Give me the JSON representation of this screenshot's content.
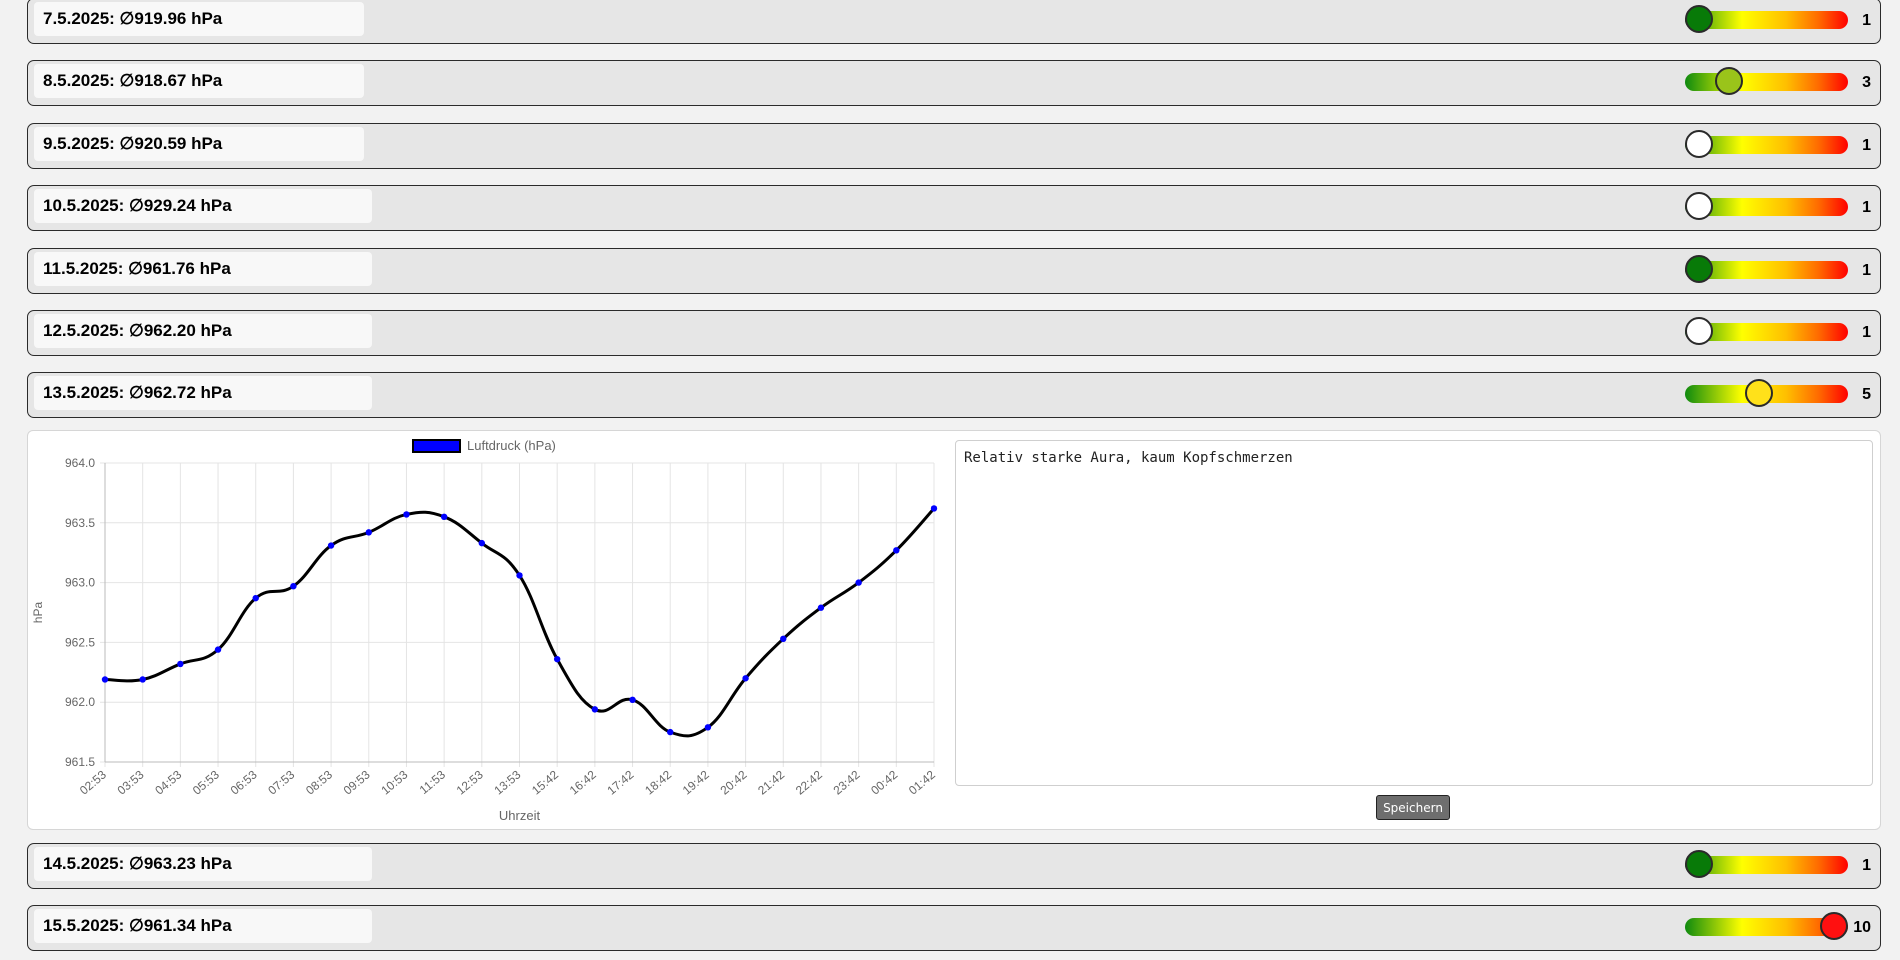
{
  "rows_before": [
    {
      "label": "7.5.2025: ∅919.96 hPa",
      "rating": "1",
      "level": 1,
      "color": "#087a08"
    },
    {
      "label": "8.5.2025: ∅918.67 hPa",
      "rating": "3",
      "level": 3,
      "color": "#9ac41a"
    },
    {
      "label": "9.5.2025: ∅920.59 hPa",
      "rating": "1",
      "level": 1,
      "color": "#ffffff"
    },
    {
      "label": "10.5.2025: ∅929.24 hPa",
      "rating": "1",
      "level": 1,
      "color": "#ffffff"
    },
    {
      "label": "11.5.2025: ∅961.76 hPa",
      "rating": "1",
      "level": 1,
      "color": "#087a08"
    },
    {
      "label": "12.5.2025: ∅962.20 hPa",
      "rating": "1",
      "level": 1,
      "color": "#ffffff"
    },
    {
      "label": "13.5.2025: ∅962.72 hPa",
      "rating": "5",
      "level": 5,
      "color": "#ffe11a"
    }
  ],
  "rows_after": [
    {
      "label": "14.5.2025: ∅963.23 hPa",
      "rating": "1",
      "level": 1,
      "color": "#087a08"
    },
    {
      "label": "15.5.2025: ∅961.34 hPa",
      "rating": "10",
      "level": 10,
      "color": "#ff1010"
    }
  ],
  "rating_scale": {
    "min": 1,
    "max": 10
  },
  "note": {
    "text": "Relativ starke Aura, kaum Kopfschmerzen"
  },
  "save_label": "Speichern",
  "chart_data": {
    "type": "line",
    "legend_label": "Luftdruck (hPa)",
    "xlabel": "Uhrzeit",
    "ylabel": "hPa",
    "ylim": [
      961.5,
      964.0
    ],
    "yticks": [
      "964.0",
      "963.5",
      "963.0",
      "962.5",
      "962.0",
      "961.5"
    ],
    "grid": true,
    "legend_position": "top",
    "categories": [
      "02:53",
      "03:53",
      "04:53",
      "05:53",
      "06:53",
      "07:53",
      "08:53",
      "09:53",
      "10:53",
      "11:53",
      "12:53",
      "13:53",
      "15:42",
      "16:42",
      "17:42",
      "18:42",
      "19:42",
      "20:42",
      "21:42",
      "22:42",
      "23:42",
      "00:42",
      "01:42"
    ],
    "values": [
      962.19,
      962.19,
      962.32,
      962.44,
      962.87,
      962.97,
      963.31,
      963.42,
      963.57,
      963.55,
      963.33,
      963.06,
      962.36,
      961.94,
      962.02,
      961.75,
      961.79,
      962.2,
      962.53,
      962.79,
      963.0,
      963.27,
      963.62
    ],
    "line_color": "#000000",
    "point_color": "#0000ff"
  }
}
